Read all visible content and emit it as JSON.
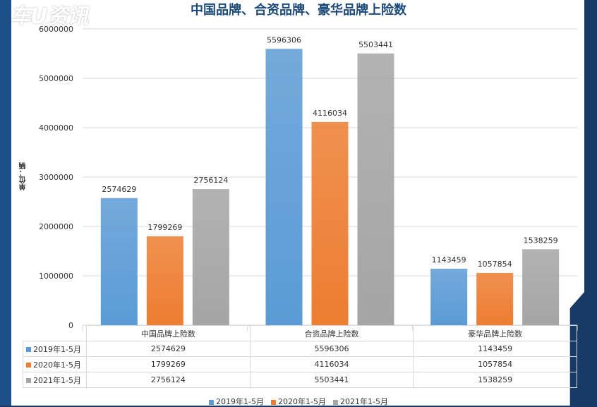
{
  "watermark": "车U资讯",
  "chart_data": {
    "type": "bar",
    "title": "中国品牌、合资品牌、豪华品牌上险数",
    "ylabel": "单位：辆",
    "ylim": [
      0,
      6000000
    ],
    "yticks": [
      "0",
      "1000000",
      "2000000",
      "3000000",
      "4000000",
      "5000000",
      "6000000"
    ],
    "categories": [
      "中国品牌上险数",
      "合资品牌上险数",
      "豪华品牌上险数"
    ],
    "series": [
      {
        "name": "2019年1-5月",
        "color": "#5b9bd5",
        "values": [
          2574629,
          5596306,
          1143459
        ]
      },
      {
        "name": "2020年1-5月",
        "color": "#ed7d31",
        "values": [
          1799269,
          4116034,
          1057854
        ]
      },
      {
        "name": "2021年1-5月",
        "color": "#a5a5a5",
        "values": [
          2756124,
          5503441,
          1538259
        ]
      }
    ],
    "grid": true,
    "legend": "bottom",
    "data_table": true
  }
}
